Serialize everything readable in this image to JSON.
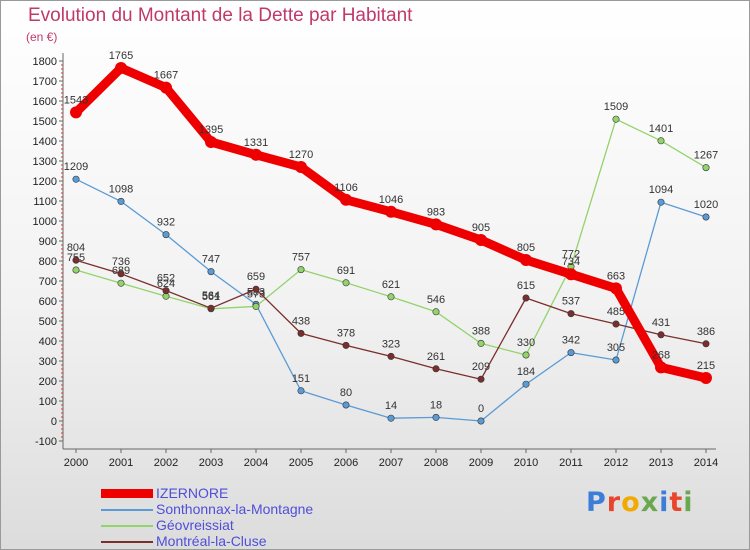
{
  "title": "Evolution du Montant de la Dette par Habitant",
  "unit": "(en €)",
  "logo": {
    "text": "Proxiti",
    "colors": [
      "#3b7dd8",
      "#e8452c",
      "#f2a900",
      "#6aa84f",
      "#3b7dd8",
      "#e8452c",
      "#6aa84f"
    ]
  },
  "chart_data": {
    "type": "line",
    "x": [
      "2000",
      "2001",
      "2002",
      "2003",
      "2004",
      "2005",
      "2006",
      "2007",
      "2008",
      "2009",
      "2010",
      "2011",
      "2012",
      "2013",
      "2014"
    ],
    "ylim": [
      -100,
      1800
    ],
    "yticks": [
      -100,
      0,
      100,
      200,
      300,
      400,
      500,
      600,
      700,
      800,
      900,
      1000,
      1100,
      1200,
      1300,
      1400,
      1500,
      1600,
      1700,
      1800
    ],
    "grid": false,
    "legend_position": "bottom-left",
    "series": [
      {
        "name": "IZERNORE",
        "color": "#ee0000",
        "values": [
          1543,
          1765,
          1667,
          1395,
          1331,
          1270,
          1106,
          1046,
          983,
          905,
          805,
          734,
          663,
          268,
          215
        ]
      },
      {
        "name": "Sonthonnax-la-Montagne",
        "color": "#5b9bd5",
        "values": [
          1209,
          1098,
          932,
          747,
          583,
          151,
          80,
          14,
          18,
          0,
          184,
          342,
          305,
          1094,
          1020
        ]
      },
      {
        "name": "Géovreissiat",
        "color": "#92d36b",
        "values": [
          755,
          689,
          624,
          561,
          573,
          757,
          691,
          621,
          546,
          388,
          330,
          772,
          1509,
          1401,
          1267
        ]
      },
      {
        "name": "Montréal-la-Cluse",
        "color": "#7b2e2e",
        "values": [
          804,
          736,
          652,
          564,
          659,
          438,
          378,
          323,
          261,
          209,
          615,
          537,
          485,
          431,
          386
        ]
      }
    ]
  }
}
